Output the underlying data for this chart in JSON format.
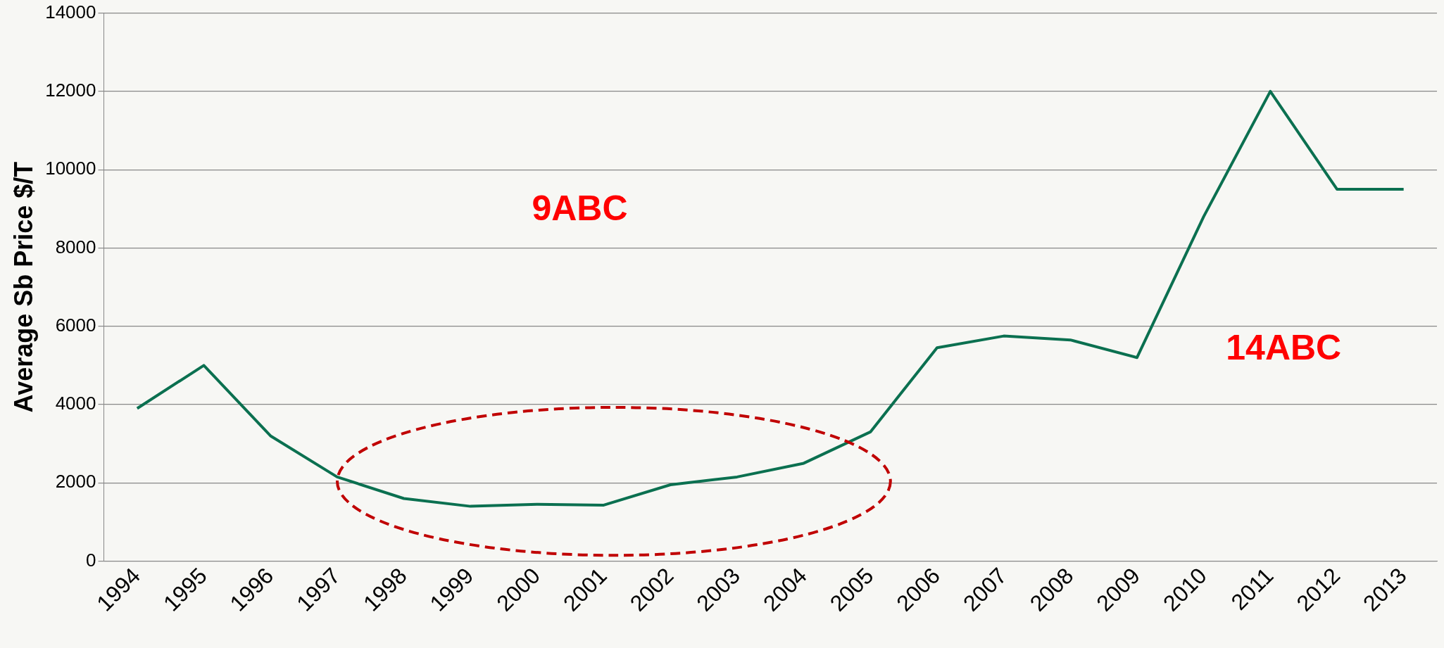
{
  "chart_data": {
    "type": "line",
    "ylabel": "Average Sb Price $/T",
    "categories": [
      "1994",
      "1995",
      "1996",
      "1997",
      "1998",
      "1999",
      "2000",
      "2001",
      "2002",
      "2003",
      "2004",
      "2005",
      "2006",
      "2007",
      "2008",
      "2009",
      "2010",
      "2011",
      "2012",
      "2013"
    ],
    "series": [
      {
        "color": "#0b7050",
        "values": [
          3900,
          5000,
          3200,
          2150,
          1600,
          1400,
          1450,
          1430,
          1950,
          2150,
          2500,
          3300,
          5450,
          5750,
          5650,
          5200,
          8800,
          12000,
          9500,
          9500
        ]
      }
    ],
    "ylim": [
      0,
      14000
    ],
    "yticks": [
      0,
      2000,
      4000,
      6000,
      8000,
      10000,
      12000,
      14000
    ],
    "grid": "y",
    "legend": false,
    "marker": "none",
    "line_style": "solid",
    "annotations": [
      "9ABC",
      "14ABC"
    ]
  }
}
